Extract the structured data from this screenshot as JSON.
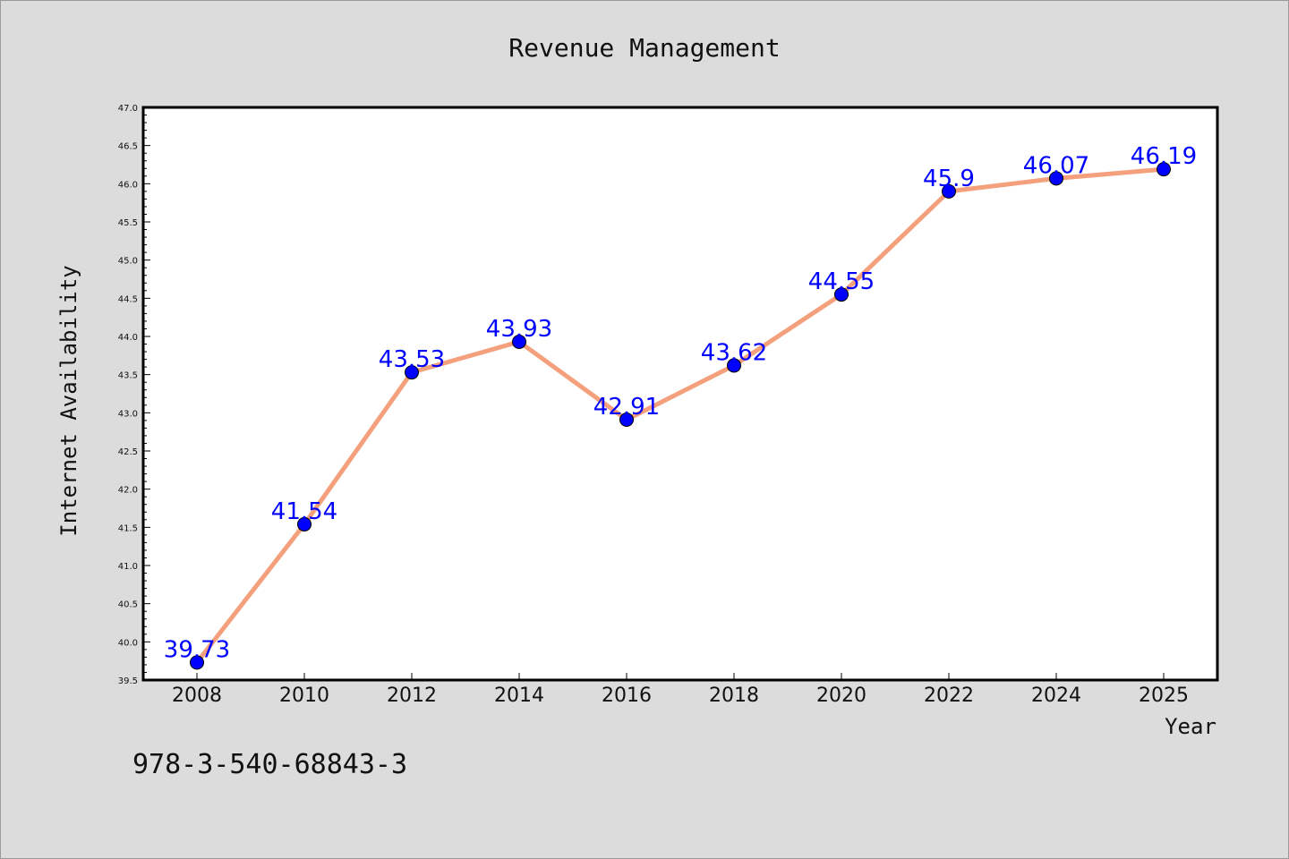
{
  "chart_data": {
    "type": "line",
    "title": "Revenue Management",
    "xlabel": "Year",
    "ylabel": "Internet Availability",
    "x": [
      "2008",
      "2010",
      "2012",
      "2014",
      "2016",
      "2018",
      "2020",
      "2022",
      "2024",
      "2025"
    ],
    "series": [
      {
        "values": [
          39.73,
          41.54,
          43.53,
          43.93,
          42.91,
          43.62,
          44.55,
          45.9,
          46.07,
          46.19
        ],
        "data_labels": [
          "39.73",
          "41.54",
          "43.53",
          "43.93",
          "42.91",
          "43.62",
          "44.55",
          "45.9",
          "46.07",
          "46.19"
        ],
        "line_color": "#f4a07c",
        "marker_color": "#0000ff"
      }
    ],
    "ylim": [
      39.5,
      47.0
    ],
    "y_ticks": [
      "39.5",
      "40.0",
      "40.5",
      "41.0",
      "41.5",
      "42.0",
      "42.5",
      "43.0",
      "43.5",
      "44.0",
      "44.5",
      "45.0",
      "45.5",
      "46.0",
      "46.5",
      "47.0"
    ],
    "grid": false,
    "legend": "none"
  },
  "footnote": "978-3-540-68843-3",
  "colors": {
    "background": "#dcdcdc",
    "plot_background": "#ffffff",
    "line": "#f4a07c",
    "marker": "#0000ff",
    "data_label": "#0000ff"
  }
}
